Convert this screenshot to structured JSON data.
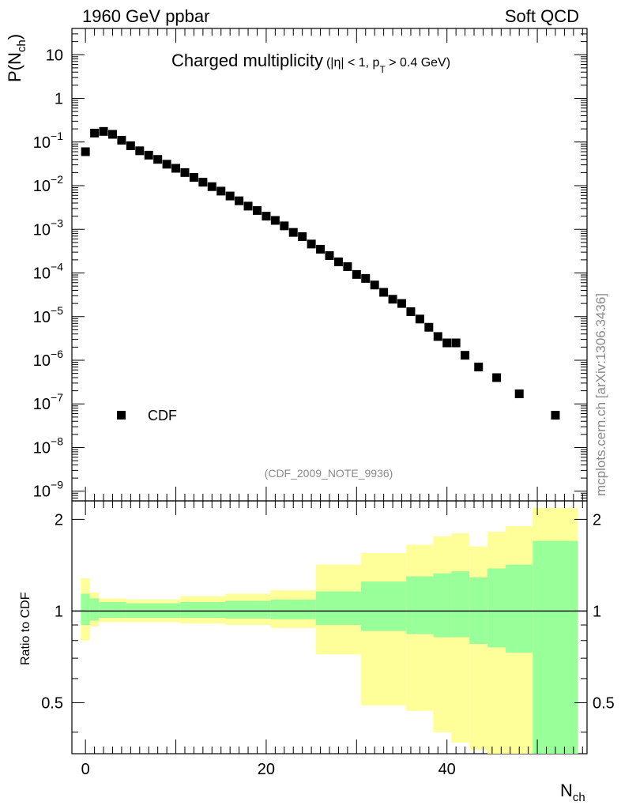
{
  "header": {
    "left": "1960 GeV ppbar",
    "right": "Soft QCD"
  },
  "side_label": "mcplots.cern.ch [arXiv:1306.3436]",
  "reference_label": "(CDF_2009_NOTE_9936)",
  "colors": {
    "marker": "#000000",
    "band_inner": "#99ff99",
    "band_outer": "#ffff99",
    "side_text": "#8a8a8a"
  },
  "chart_data": [
    {
      "type": "scatter",
      "panel": "main",
      "title_main": "Charged multiplicity",
      "title_cut_prefix": "(|η| < 1, p",
      "title_cut_sub": "T",
      "title_cut_suffix": " > 0.4 GeV)",
      "ylabel_base": "P(N",
      "ylabel_sub": "ch",
      "ylabel_close": ")",
      "yscale": "log",
      "xlim": [
        -1.5,
        55.5
      ],
      "ylim": [
        6e-10,
        40
      ],
      "grid": false,
      "legend_position": "lower-left",
      "yticks": [
        {
          "value": 10,
          "base": "10",
          "exp": ""
        },
        {
          "value": 1,
          "base": "1",
          "exp": ""
        },
        {
          "value": 0.1,
          "base": "10",
          "exp": "−1"
        },
        {
          "value": 0.01,
          "base": "10",
          "exp": "−2"
        },
        {
          "value": 0.001,
          "base": "10",
          "exp": "−3"
        },
        {
          "value": 0.0001,
          "base": "10",
          "exp": "−4"
        },
        {
          "value": 1e-05,
          "base": "10",
          "exp": "−5"
        },
        {
          "value": 1e-06,
          "base": "10",
          "exp": "−6"
        },
        {
          "value": 1e-07,
          "base": "10",
          "exp": "−7"
        },
        {
          "value": 1e-08,
          "base": "10",
          "exp": "−8"
        },
        {
          "value": 1e-09,
          "base": "10",
          "exp": "−9"
        }
      ],
      "series": [
        {
          "name": "CDF",
          "x": [
            0,
            1,
            2,
            3,
            4,
            5,
            6,
            7,
            8,
            9,
            10,
            11,
            12,
            13,
            14,
            15,
            16,
            17,
            18,
            19,
            20,
            21,
            22,
            23,
            24,
            25,
            26,
            27,
            28,
            29,
            30,
            31,
            32,
            33,
            34,
            35,
            36,
            37,
            38,
            39,
            40,
            41,
            42,
            43.5,
            45.5,
            48,
            52
          ],
          "y": [
            0.06,
            0.16,
            0.175,
            0.15,
            0.11,
            0.082,
            0.063,
            0.05,
            0.04,
            0.031,
            0.025,
            0.02,
            0.0155,
            0.012,
            0.0095,
            0.0075,
            0.0058,
            0.0045,
            0.0034,
            0.0027,
            0.002,
            0.0016,
            0.0012,
            0.00085,
            0.00068,
            0.00046,
            0.00035,
            0.00025,
            0.00018,
            0.00014,
            9.25e-05,
            7.5e-05,
            5.3e-05,
            3.6e-05,
            2.5e-05,
            2e-05,
            1.3e-05,
            8.8e-06,
            5.7e-06,
            3.5e-06,
            2.5e-06,
            2.5e-06,
            1.3e-06,
            7e-07,
            4e-07,
            1.7e-07,
            5.5e-08
          ]
        }
      ]
    },
    {
      "type": "area",
      "panel": "ratio",
      "ylabel": "Ratio to CDF",
      "xlabel_base": "N",
      "xlabel_sub": "ch",
      "xlim": [
        -1.5,
        55.5
      ],
      "ylim": [
        0.34,
        2.3
      ],
      "xticks": [
        0,
        20,
        40
      ],
      "yticks": [
        0.5,
        1,
        2
      ],
      "reference_line": 1,
      "bins": [
        {
          "x0": -0.5,
          "x1": 0.5,
          "inner": [
            0.9,
            1.14
          ],
          "outer": [
            0.8,
            1.28
          ]
        },
        {
          "x0": 0.5,
          "x1": 1.5,
          "inner": [
            0.93,
            1.1
          ],
          "outer": [
            0.89,
            1.15
          ]
        },
        {
          "x0": 1.5,
          "x1": 4.5,
          "inner": [
            0.95,
            1.07
          ],
          "outer": [
            0.92,
            1.1
          ]
        },
        {
          "x0": 4.5,
          "x1": 10.5,
          "inner": [
            0.95,
            1.06
          ],
          "outer": [
            0.92,
            1.09
          ]
        },
        {
          "x0": 10.5,
          "x1": 15.5,
          "inner": [
            0.95,
            1.07
          ],
          "outer": [
            0.91,
            1.12
          ]
        },
        {
          "x0": 15.5,
          "x1": 20.5,
          "inner": [
            0.945,
            1.08
          ],
          "outer": [
            0.9,
            1.14
          ]
        },
        {
          "x0": 20.5,
          "x1": 25.5,
          "inner": [
            0.94,
            1.09
          ],
          "outer": [
            0.88,
            1.17
          ]
        },
        {
          "x0": 25.5,
          "x1": 30.5,
          "inner": [
            0.9,
            1.16
          ],
          "outer": [
            0.72,
            1.42
          ]
        },
        {
          "x0": 30.5,
          "x1": 35.5,
          "inner": [
            0.86,
            1.25
          ],
          "outer": [
            0.49,
            1.55
          ]
        },
        {
          "x0": 35.5,
          "x1": 38.5,
          "inner": [
            0.84,
            1.3
          ],
          "outer": [
            0.47,
            1.65
          ]
        },
        {
          "x0": 38.5,
          "x1": 40.5,
          "inner": [
            0.82,
            1.33
          ],
          "outer": [
            0.4,
            1.76
          ]
        },
        {
          "x0": 40.5,
          "x1": 42.5,
          "inner": [
            0.82,
            1.35
          ],
          "outer": [
            0.37,
            1.8
          ]
        },
        {
          "x0": 42.5,
          "x1": 44.5,
          "inner": [
            0.78,
            1.29
          ],
          "outer": [
            0.35,
            1.63
          ]
        },
        {
          "x0": 44.5,
          "x1": 46.5,
          "inner": [
            0.76,
            1.38
          ],
          "outer": [
            0.34,
            1.82
          ]
        },
        {
          "x0": 46.5,
          "x1": 49.5,
          "inner": [
            0.73,
            1.42
          ],
          "outer": [
            0.34,
            1.9
          ]
        },
        {
          "x0": 49.5,
          "x1": 54.5,
          "inner": [
            0.34,
            1.7
          ],
          "outer": [
            0.34,
            2.18
          ]
        }
      ]
    }
  ]
}
